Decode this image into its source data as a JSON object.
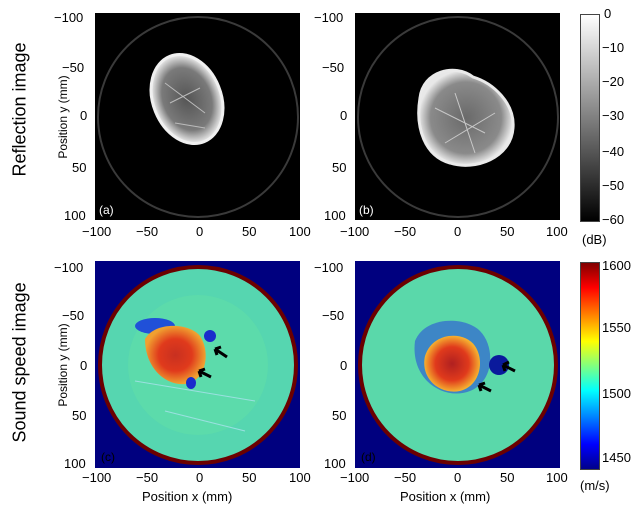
{
  "row_labels": {
    "reflection": "Reflection image",
    "sound_speed": "Sound speed image"
  },
  "axis": {
    "ylabel": "Position y (mm)",
    "xlabel": "Position x (mm)",
    "y_ticks": [
      "−100",
      "−50",
      "0",
      "50",
      "100"
    ],
    "x_ticks": [
      "−100",
      "−50",
      "0",
      "50",
      "100"
    ]
  },
  "panels": [
    {
      "label": "(a)"
    },
    {
      "label": "(b)"
    },
    {
      "label": "(c)"
    },
    {
      "label": "(d)"
    }
  ],
  "colorbars": {
    "reflection": {
      "ticks": [
        "0",
        "−10",
        "−20",
        "−30",
        "−40",
        "−50",
        "−60"
      ],
      "unit": "(dB)",
      "range": [
        -60,
        0
      ],
      "colormap": "gray"
    },
    "sound_speed": {
      "ticks": [
        "1600",
        "1550",
        "1500",
        "1450"
      ],
      "unit": "(m/s)",
      "range": [
        1440,
        1600
      ],
      "colormap": "jet"
    }
  }
}
